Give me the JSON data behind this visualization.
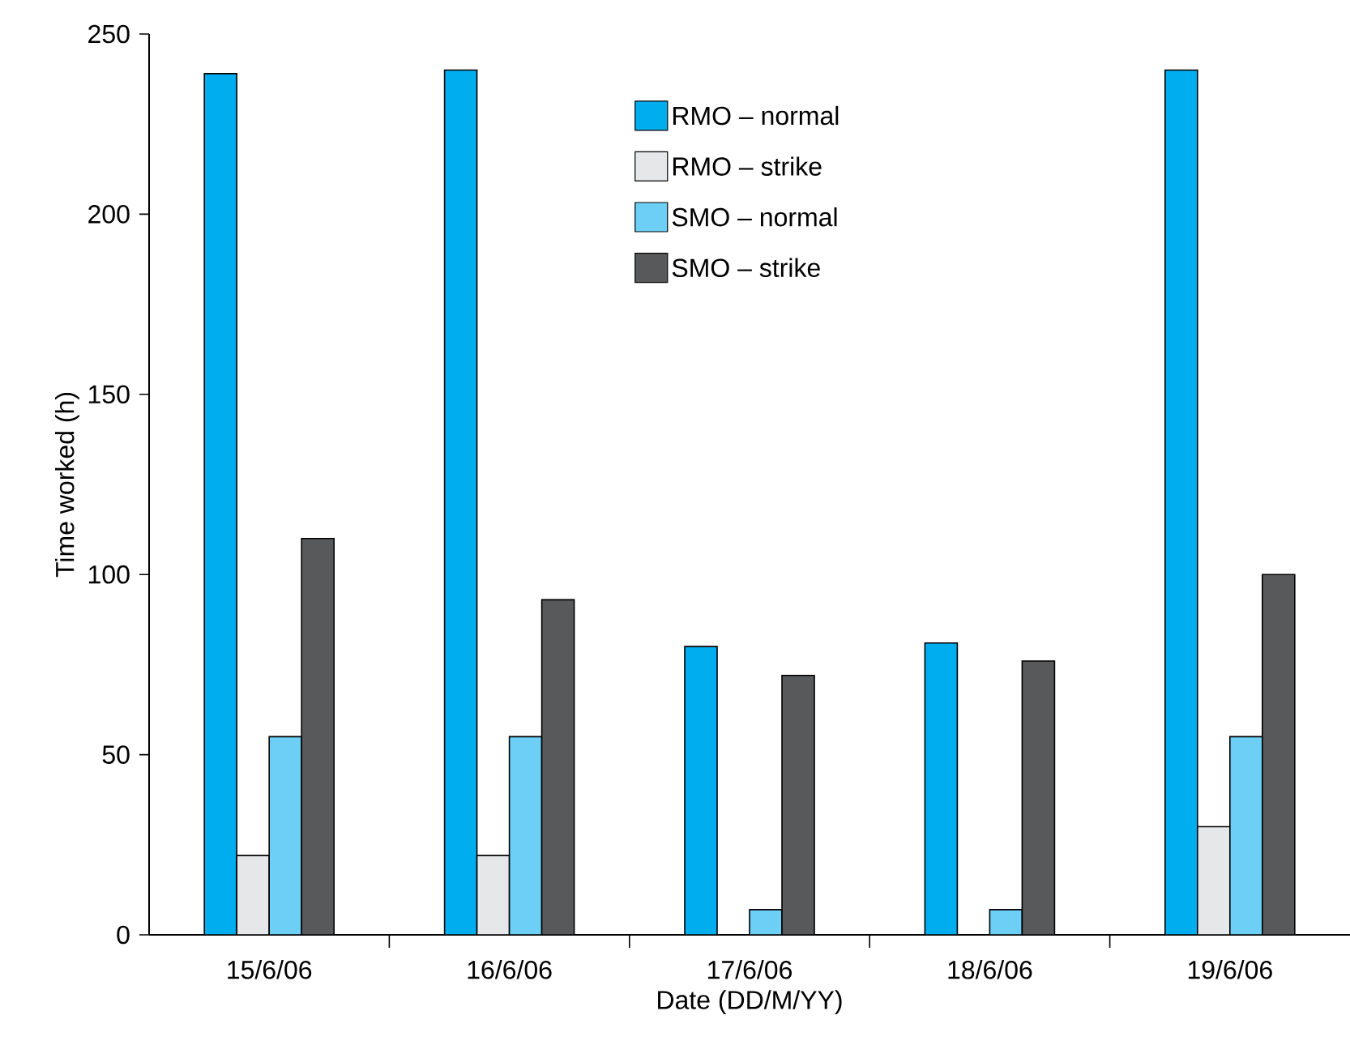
{
  "chart_data": {
    "type": "bar",
    "xlabel": "Date (DD/M/YY)",
    "ylabel": "Time worked (h)",
    "categories": [
      "15/6/06",
      "16/6/06",
      "17/6/06",
      "18/6/06",
      "19/6/06"
    ],
    "series": [
      {
        "name": "RMO – normal",
        "color": "#00aeef",
        "values": [
          239,
          240,
          80,
          81,
          240
        ]
      },
      {
        "name": "RMO – strike",
        "color": "#e6e7e8",
        "values": [
          22,
          22,
          null,
          null,
          30
        ]
      },
      {
        "name": "SMO – normal",
        "color": "#6dcff6",
        "values": [
          55,
          55,
          7,
          7,
          55
        ]
      },
      {
        "name": "SMO – strike",
        "color": "#58595b",
        "values": [
          110,
          93,
          72,
          76,
          100
        ]
      }
    ],
    "ylim": [
      0,
      250
    ],
    "yticks": [
      0,
      50,
      100,
      150,
      200,
      250
    ],
    "legend": "top",
    "grid": false
  }
}
